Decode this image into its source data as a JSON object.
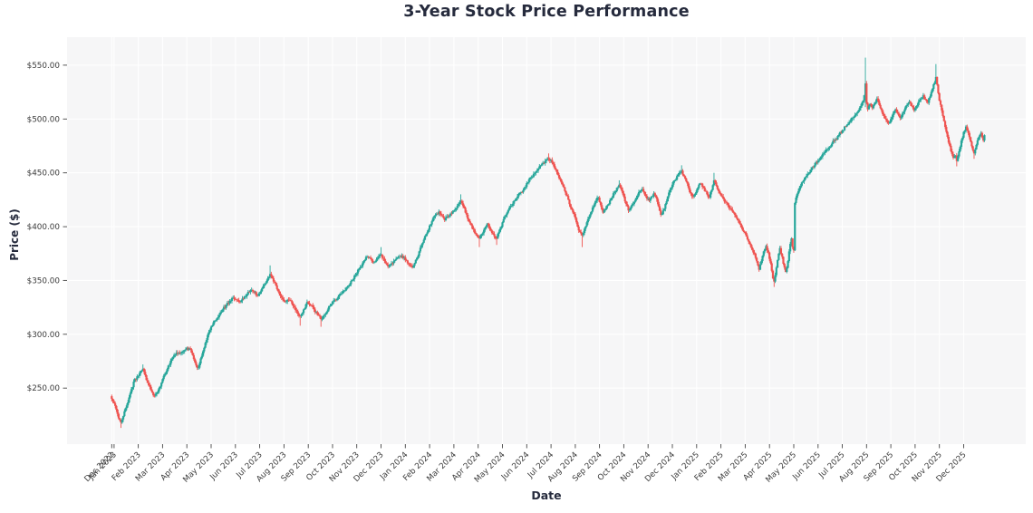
{
  "chart_data": {
    "type": "candlestick",
    "title": "3-Year Stock Price Performance",
    "xlabel": "Date",
    "ylabel": "Price ($)",
    "grid": "on",
    "legend": "none",
    "ylim": [
      198,
      576
    ],
    "days_total": 756,
    "colors": {
      "up_candle": "#26a69a",
      "down_candle": "#ef5350",
      "plot_background": "#f6f6f7",
      "gridline": "#ffffff",
      "figure_background": "#ffffff",
      "title_text": "#262b3d",
      "tick_text": "#3b3b3b",
      "tick_mark": "#444444"
    },
    "y_ticks": [
      {
        "label": "$250.00",
        "value": 250
      },
      {
        "label": "$300.00",
        "value": 300
      },
      {
        "label": "$350.00",
        "value": 350
      },
      {
        "label": "$400.00",
        "value": 400
      },
      {
        "label": "$450.00",
        "value": 450
      },
      {
        "label": "$500.00",
        "value": 500
      },
      {
        "label": "$550.00",
        "value": 550
      }
    ],
    "x_ticks": [
      {
        "label": "Dec 2022",
        "day": 0
      },
      {
        "label": "Jan 2023",
        "day": 2
      },
      {
        "label": "Feb 2023",
        "day": 23
      },
      {
        "label": "Mar 2023",
        "day": 44
      },
      {
        "label": "Apr 2023",
        "day": 65
      },
      {
        "label": "May 2023",
        "day": 86
      },
      {
        "label": "Jun 2023",
        "day": 107
      },
      {
        "label": "Jul 2023",
        "day": 128
      },
      {
        "label": "Aug 2023",
        "day": 149
      },
      {
        "label": "Sep 2023",
        "day": 170
      },
      {
        "label": "Oct 2023",
        "day": 191
      },
      {
        "label": "Nov 2023",
        "day": 212
      },
      {
        "label": "Dec 2023",
        "day": 233
      },
      {
        "label": "Jan 2024",
        "day": 254
      },
      {
        "label": "Feb 2024",
        "day": 275
      },
      {
        "label": "Mar 2024",
        "day": 296
      },
      {
        "label": "Apr 2024",
        "day": 317
      },
      {
        "label": "May 2024",
        "day": 338
      },
      {
        "label": "Jun 2024",
        "day": 359
      },
      {
        "label": "Jul 2024",
        "day": 380
      },
      {
        "label": "Aug 2024",
        "day": 401
      },
      {
        "label": "Sep 2024",
        "day": 422
      },
      {
        "label": "Oct 2024",
        "day": 443
      },
      {
        "label": "Nov 2024",
        "day": 464
      },
      {
        "label": "Dec 2024",
        "day": 485
      },
      {
        "label": "Jan 2025",
        "day": 506
      },
      {
        "label": "Feb 2025",
        "day": 527
      },
      {
        "label": "Mar 2025",
        "day": 548
      },
      {
        "label": "Apr 2025",
        "day": 569
      },
      {
        "label": "May 2025",
        "day": 590
      },
      {
        "label": "Jun 2025",
        "day": 611
      },
      {
        "label": "Jul 2025",
        "day": 632
      },
      {
        "label": "Aug 2025",
        "day": 653
      },
      {
        "label": "Sep 2025",
        "day": 674
      },
      {
        "label": "Oct 2025",
        "day": 695
      },
      {
        "label": "Nov 2025",
        "day": 716
      },
      {
        "label": "Dec 2025",
        "day": 737
      }
    ],
    "price_anchors": [
      [
        0,
        240
      ],
      [
        2,
        236
      ],
      [
        4,
        230
      ],
      [
        6,
        222
      ],
      [
        8,
        218
      ],
      [
        10,
        224
      ],
      [
        13,
        234
      ],
      [
        16,
        245
      ],
      [
        19,
        256
      ],
      [
        22,
        261
      ],
      [
        25,
        266
      ],
      [
        27,
        268
      ],
      [
        29,
        262
      ],
      [
        31,
        255
      ],
      [
        34,
        248
      ],
      [
        37,
        243
      ],
      [
        40,
        247
      ],
      [
        43,
        255
      ],
      [
        46,
        263
      ],
      [
        49,
        271
      ],
      [
        52,
        277
      ],
      [
        55,
        281
      ],
      [
        58,
        283
      ],
      [
        61,
        284
      ],
      [
        64,
        286
      ],
      [
        67,
        287
      ],
      [
        69,
        283
      ],
      [
        71,
        277
      ],
      [
        73,
        271
      ],
      [
        75,
        269
      ],
      [
        78,
        280
      ],
      [
        81,
        292
      ],
      [
        84,
        302
      ],
      [
        87,
        308
      ],
      [
        90,
        313
      ],
      [
        93,
        318
      ],
      [
        96,
        323
      ],
      [
        99,
        327
      ],
      [
        102,
        331
      ],
      [
        105,
        334
      ],
      [
        108,
        332
      ],
      [
        111,
        330
      ],
      [
        114,
        333
      ],
      [
        117,
        337
      ],
      [
        120,
        341
      ],
      [
        123,
        339
      ],
      [
        126,
        336
      ],
      [
        129,
        340
      ],
      [
        132,
        346
      ],
      [
        135,
        352
      ],
      [
        137,
        356
      ],
      [
        139,
        352
      ],
      [
        141,
        348
      ],
      [
        144,
        340
      ],
      [
        147,
        334
      ],
      [
        150,
        330
      ],
      [
        152,
        332
      ],
      [
        155,
        331
      ],
      [
        158,
        325
      ],
      [
        161,
        319
      ],
      [
        163,
        317
      ],
      [
        166,
        323
      ],
      [
        169,
        330
      ],
      [
        172,
        327
      ],
      [
        175,
        323
      ],
      [
        178,
        318
      ],
      [
        181,
        314
      ],
      [
        184,
        318
      ],
      [
        187,
        323
      ],
      [
        190,
        328
      ],
      [
        193,
        332
      ],
      [
        196,
        335
      ],
      [
        199,
        338
      ],
      [
        202,
        341
      ],
      [
        205,
        345
      ],
      [
        208,
        350
      ],
      [
        211,
        355
      ],
      [
        214,
        361
      ],
      [
        217,
        366
      ],
      [
        219,
        369
      ],
      [
        221,
        372
      ],
      [
        224,
        370
      ],
      [
        227,
        367
      ],
      [
        230,
        371
      ],
      [
        233,
        374
      ],
      [
        236,
        368
      ],
      [
        239,
        363
      ],
      [
        242,
        366
      ],
      [
        245,
        369
      ],
      [
        248,
        372
      ],
      [
        251,
        373
      ],
      [
        254,
        369
      ],
      [
        256,
        366
      ],
      [
        258,
        364
      ],
      [
        260,
        362
      ],
      [
        262,
        366
      ],
      [
        264,
        371
      ],
      [
        266,
        377
      ],
      [
        269,
        385
      ],
      [
        272,
        393
      ],
      [
        275,
        401
      ],
      [
        278,
        408
      ],
      [
        281,
        412
      ],
      [
        283,
        414
      ],
      [
        286,
        410
      ],
      [
        288,
        406
      ],
      [
        291,
        409
      ],
      [
        294,
        412
      ],
      [
        297,
        416
      ],
      [
        300,
        421
      ],
      [
        302,
        424
      ],
      [
        304,
        419
      ],
      [
        306,
        413
      ],
      [
        309,
        405
      ],
      [
        312,
        398
      ],
      [
        315,
        393
      ],
      [
        318,
        389
      ],
      [
        321,
        394
      ],
      [
        323,
        399
      ],
      [
        325,
        403
      ],
      [
        327,
        398
      ],
      [
        329,
        394
      ],
      [
        331,
        391
      ],
      [
        333,
        389
      ],
      [
        336,
        398
      ],
      [
        339,
        407
      ],
      [
        342,
        413
      ],
      [
        345,
        419
      ],
      [
        348,
        424
      ],
      [
        351,
        428
      ],
      [
        354,
        432
      ],
      [
        357,
        436
      ],
      [
        360,
        441
      ],
      [
        363,
        446
      ],
      [
        366,
        450
      ],
      [
        369,
        454
      ],
      [
        372,
        458
      ],
      [
        375,
        461
      ],
      [
        378,
        463
      ],
      [
        380,
        462
      ],
      [
        382,
        458
      ],
      [
        384,
        453
      ],
      [
        386,
        448
      ],
      [
        389,
        441
      ],
      [
        392,
        433
      ],
      [
        395,
        425
      ],
      [
        398,
        416
      ],
      [
        401,
        408
      ],
      [
        403,
        400
      ],
      [
        405,
        395
      ],
      [
        407,
        392
      ],
      [
        409,
        398
      ],
      [
        411,
        404
      ],
      [
        413,
        409
      ],
      [
        415,
        414
      ],
      [
        417,
        419
      ],
      [
        419,
        424
      ],
      [
        421,
        427
      ],
      [
        423,
        420
      ],
      [
        425,
        413
      ],
      [
        427,
        416
      ],
      [
        429,
        420
      ],
      [
        432,
        426
      ],
      [
        435,
        432
      ],
      [
        437,
        436
      ],
      [
        439,
        439
      ],
      [
        441,
        434
      ],
      [
        443,
        428
      ],
      [
        445,
        421
      ],
      [
        447,
        415
      ],
      [
        449,
        418
      ],
      [
        451,
        421
      ],
      [
        453,
        425
      ],
      [
        455,
        429
      ],
      [
        457,
        433
      ],
      [
        459,
        435
      ],
      [
        461,
        430
      ],
      [
        463,
        426
      ],
      [
        465,
        424
      ],
      [
        467,
        428
      ],
      [
        469,
        431
      ],
      [
        471,
        427
      ],
      [
        473,
        419
      ],
      [
        475,
        411
      ],
      [
        477,
        415
      ],
      [
        479,
        421
      ],
      [
        481,
        428
      ],
      [
        483,
        434
      ],
      [
        485,
        439
      ],
      [
        487,
        443
      ],
      [
        489,
        447
      ],
      [
        491,
        450
      ],
      [
        493,
        452
      ],
      [
        495,
        447
      ],
      [
        497,
        442
      ],
      [
        499,
        436
      ],
      [
        501,
        431
      ],
      [
        503,
        428
      ],
      [
        505,
        431
      ],
      [
        507,
        436
      ],
      [
        509,
        440
      ],
      [
        511,
        437
      ],
      [
        513,
        433
      ],
      [
        515,
        430
      ],
      [
        517,
        427
      ],
      [
        519,
        434
      ],
      [
        521,
        443
      ],
      [
        523,
        438
      ],
      [
        525,
        433
      ],
      [
        527,
        429
      ],
      [
        529,
        426
      ],
      [
        531,
        423
      ],
      [
        533,
        420
      ],
      [
        535,
        417
      ],
      [
        537,
        414
      ],
      [
        539,
        411
      ],
      [
        541,
        407
      ],
      [
        543,
        403
      ],
      [
        545,
        399
      ],
      [
        547,
        395
      ],
      [
        549,
        391
      ],
      [
        551,
        386
      ],
      [
        553,
        381
      ],
      [
        555,
        376
      ],
      [
        557,
        371
      ],
      [
        559,
        364
      ],
      [
        560,
        360
      ],
      [
        562,
        368
      ],
      [
        564,
        377
      ],
      [
        566,
        382
      ],
      [
        568,
        376
      ],
      [
        570,
        366
      ],
      [
        571,
        359
      ],
      [
        572,
        352
      ],
      [
        573,
        349
      ],
      [
        574,
        355
      ],
      [
        575,
        362
      ],
      [
        576,
        369
      ],
      [
        577,
        375
      ],
      [
        578,
        380
      ],
      [
        580,
        372
      ],
      [
        582,
        362
      ],
      [
        583,
        358
      ],
      [
        585,
        368
      ],
      [
        586,
        377
      ],
      [
        587,
        384
      ],
      [
        588,
        389
      ],
      [
        589,
        381
      ],
      [
        590,
        378
      ],
      [
        591,
        422
      ],
      [
        592,
        427
      ],
      [
        594,
        433
      ],
      [
        596,
        438
      ],
      [
        598,
        442
      ],
      [
        600,
        446
      ],
      [
        602,
        449
      ],
      [
        605,
        453
      ],
      [
        608,
        457
      ],
      [
        611,
        461
      ],
      [
        614,
        465
      ],
      [
        617,
        469
      ],
      [
        620,
        473
      ],
      [
        623,
        477
      ],
      [
        626,
        481
      ],
      [
        629,
        485
      ],
      [
        632,
        489
      ],
      [
        635,
        493
      ],
      [
        638,
        497
      ],
      [
        641,
        501
      ],
      [
        644,
        505
      ],
      [
        646,
        508
      ],
      [
        648,
        512
      ],
      [
        650,
        517
      ],
      [
        651,
        522
      ],
      [
        652,
        533
      ],
      [
        653,
        515
      ],
      [
        654,
        509
      ],
      [
        656,
        514
      ],
      [
        658,
        510
      ],
      [
        660,
        515
      ],
      [
        662,
        519
      ],
      [
        664,
        513
      ],
      [
        666,
        508
      ],
      [
        668,
        503
      ],
      [
        670,
        499
      ],
      [
        672,
        496
      ],
      [
        674,
        500
      ],
      [
        676,
        505
      ],
      [
        678,
        509
      ],
      [
        680,
        505
      ],
      [
        682,
        501
      ],
      [
        684,
        505
      ],
      [
        686,
        509
      ],
      [
        688,
        513
      ],
      [
        690,
        516
      ],
      [
        692,
        512
      ],
      [
        694,
        508
      ],
      [
        696,
        512
      ],
      [
        698,
        516
      ],
      [
        700,
        519
      ],
      [
        702,
        522
      ],
      [
        704,
        518
      ],
      [
        706,
        515
      ],
      [
        708,
        521
      ],
      [
        710,
        528
      ],
      [
        712,
        534
      ],
      [
        713,
        539
      ],
      [
        714,
        532
      ],
      [
        715,
        524
      ],
      [
        716,
        517
      ],
      [
        718,
        508
      ],
      [
        720,
        498
      ],
      [
        722,
        488
      ],
      [
        724,
        478
      ],
      [
        726,
        470
      ],
      [
        728,
        464
      ],
      [
        730,
        466
      ],
      [
        731,
        461
      ],
      [
        733,
        470
      ],
      [
        735,
        480
      ],
      [
        737,
        488
      ],
      [
        739,
        493
      ],
      [
        741,
        487
      ],
      [
        743,
        479
      ],
      [
        745,
        471
      ],
      [
        746,
        468
      ],
      [
        748,
        476
      ],
      [
        750,
        483
      ],
      [
        752,
        487
      ],
      [
        753,
        483
      ],
      [
        754,
        480
      ],
      [
        755,
        485
      ]
    ],
    "wick_overrides": {
      "0": {
        "high": 244
      },
      "8": {
        "low": 213
      },
      "27": {
        "high": 272
      },
      "137": {
        "high": 364
      },
      "163": {
        "low": 308
      },
      "181": {
        "low": 307
      },
      "233": {
        "high": 381
      },
      "302": {
        "high": 430
      },
      "318": {
        "low": 381
      },
      "333": {
        "low": 383
      },
      "378": {
        "high": 468
      },
      "407": {
        "low": 381
      },
      "439": {
        "high": 443
      },
      "493": {
        "high": 457
      },
      "521": {
        "high": 450
      },
      "573": {
        "low": 344
      },
      "652": {
        "high": 557,
        "low": 511
      },
      "713": {
        "high": 551
      },
      "731": {
        "low": 456
      },
      "746": {
        "low": 463
      }
    },
    "noise": {
      "seed": 42,
      "close_amp": 3.0,
      "wick_amp": 2.0
    }
  }
}
